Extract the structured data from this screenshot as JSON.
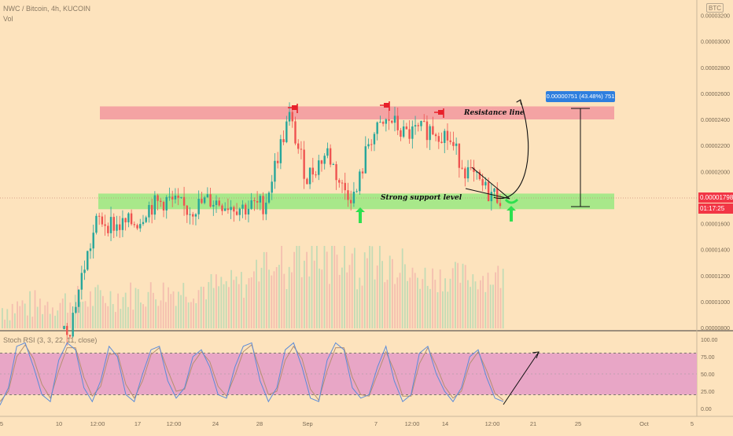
{
  "header": {
    "title": "NWC / Bitcoin, 4h, KUCOIN",
    "volume_label": "Vol",
    "quote_currency": "BTC"
  },
  "price_scale": {
    "labels": [
      "0.00003200",
      "0.00003000",
      "0.00002800",
      "0.00002600",
      "0.00002400",
      "0.00002200",
      "0.00002000",
      "0.00001800",
      "0.00001600",
      "0.00001400",
      "0.00001200",
      "0.00001000",
      "0.00000800"
    ],
    "current_price": "0.00001798",
    "countdown": "01:17:25"
  },
  "annotations": {
    "resistance_label": "Resistance line",
    "support_label": "Strong support level",
    "measure_label": "0.00000751 (43.48%) 751"
  },
  "stoch": {
    "label": "Stoch RSI (3, 3, 22, 11, close)",
    "scale_labels": [
      "100.00",
      "75.00",
      "50.00",
      "25.00",
      "0.00"
    ]
  },
  "time_axis": {
    "labels": [
      "5",
      "10",
      "12:00",
      "17",
      "12:00",
      "24",
      "28",
      "Sep",
      "7",
      "12:00",
      "14",
      "12:00",
      "21",
      "25",
      "Oct",
      "5"
    ]
  },
  "colors": {
    "background": "#fde3bd",
    "resistance_zone": "#f4a3a3",
    "support_zone": "#a8e88a",
    "bull_candle": "#26a69a",
    "bear_candle": "#ef5350",
    "stoch_band": "#e8a6c6",
    "stoch_k": "#5b8bd9",
    "stoch_d": "#b58f71",
    "arrow_green": "#2ee04f",
    "flag_red": "#e8202a"
  },
  "chart_data": {
    "type": "candlestick",
    "symbol": "NWC / Bitcoin",
    "timeframe": "4h",
    "exchange": "KUCOIN",
    "y_range": [
      8e-06,
      3.3e-05
    ],
    "resistance_zone": [
      2.4e-05,
      2.5e-05
    ],
    "support_zone": [
      1.71e-05,
      1.83e-05
    ],
    "close_path": [
      {
        "x": 0.0,
        "y": 6.5e-06
      },
      {
        "x": 0.1,
        "y": 8e-06
      },
      {
        "x": 0.12,
        "y": 1.25e-05
      },
      {
        "x": 0.14,
        "y": 1.63e-05
      },
      {
        "x": 0.17,
        "y": 1.58e-05
      },
      {
        "x": 0.2,
        "y": 1.62e-05
      },
      {
        "x": 0.21,
        "y": 1.72e-05
      },
      {
        "x": 0.24,
        "y": 1.78e-05
      },
      {
        "x": 0.27,
        "y": 1.7e-05
      },
      {
        "x": 0.3,
        "y": 1.78e-05
      },
      {
        "x": 0.35,
        "y": 1.72e-05
      },
      {
        "x": 0.38,
        "y": 1.75e-05
      },
      {
        "x": 0.4,
        "y": 2.15e-05
      },
      {
        "x": 0.415,
        "y": 2.42e-05
      },
      {
        "x": 0.44,
        "y": 1.95e-05
      },
      {
        "x": 0.47,
        "y": 2.15e-05
      },
      {
        "x": 0.49,
        "y": 1.88e-05
      },
      {
        "x": 0.51,
        "y": 1.8e-05
      },
      {
        "x": 0.53,
        "y": 2.25e-05
      },
      {
        "x": 0.56,
        "y": 2.4e-05
      },
      {
        "x": 0.58,
        "y": 2.28e-05
      },
      {
        "x": 0.62,
        "y": 2.33e-05
      },
      {
        "x": 0.64,
        "y": 2.28e-05
      },
      {
        "x": 0.67,
        "y": 2e-05
      },
      {
        "x": 0.7,
        "y": 1.84e-05
      },
      {
        "x": 0.72,
        "y": 1.8e-05
      }
    ],
    "projection": [
      {
        "x": 0.72,
        "y": 1.8e-05
      },
      {
        "x": 0.78,
        "y": 2.05e-05
      },
      {
        "x": 0.81,
        "y": 2.55e-05
      }
    ],
    "stoch_rsi": {
      "params": "3, 3, 22, 11, close",
      "y_range": [
        0,
        100
      ],
      "bands": [
        20,
        80
      ],
      "k": [
        5,
        30,
        90,
        95,
        60,
        20,
        10,
        70,
        95,
        85,
        30,
        10,
        40,
        90,
        75,
        20,
        10,
        50,
        85,
        90,
        40,
        15,
        30,
        75,
        85,
        60,
        20,
        15,
        60,
        90,
        95,
        40,
        10,
        30,
        85,
        95,
        60,
        15,
        10,
        70,
        95,
        85,
        30,
        15,
        20,
        60,
        90,
        40,
        10,
        20,
        80,
        90,
        50,
        25,
        10,
        30,
        75,
        85,
        45,
        15,
        10
      ],
      "d": [
        10,
        25,
        75,
        92,
        72,
        35,
        15,
        55,
        88,
        88,
        45,
        18,
        32,
        78,
        80,
        35,
        15,
        40,
        78,
        88,
        55,
        25,
        28,
        65,
        82,
        68,
        32,
        18,
        48,
        82,
        92,
        55,
        20,
        25,
        70,
        90,
        72,
        28,
        12,
        55,
        88,
        88,
        45,
        20,
        18,
        50,
        82,
        55,
        18,
        18,
        65,
        88,
        62,
        32,
        15,
        25,
        65,
        82,
        55,
        22,
        12
      ]
    }
  }
}
